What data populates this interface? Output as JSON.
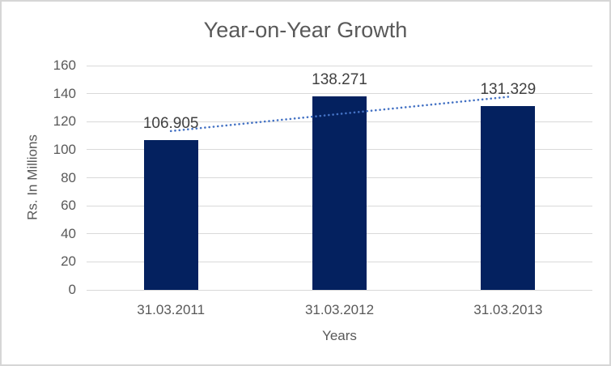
{
  "window": {
    "background": "#FFFFFF",
    "border_color": "#D6D6D6"
  },
  "chart_data": {
    "type": "bar",
    "title": "Year-on-Year Growth",
    "xlabel": "Years",
    "ylabel": "Rs. In Millions",
    "categories": [
      "31.03.2011",
      "31.03.2012",
      "31.03.2013"
    ],
    "values": [
      106.905,
      138.271,
      131.329
    ],
    "value_labels": [
      "106.905",
      "138.271",
      "131.329"
    ],
    "ylim": [
      0,
      160
    ],
    "yticks": [
      0,
      20,
      40,
      60,
      80,
      100,
      120,
      140,
      160
    ],
    "grid": true,
    "legend": "none",
    "trendline": {
      "type": "linear",
      "style": "dotted",
      "endpoint_values": [
        113.29,
        137.71
      ],
      "color": "#4472C4"
    },
    "colors": {
      "bar": "#04215F",
      "gridline": "#D9D9D9",
      "title_text": "#595959",
      "axis_text": "#595959",
      "value_label_text": "#404040"
    }
  }
}
